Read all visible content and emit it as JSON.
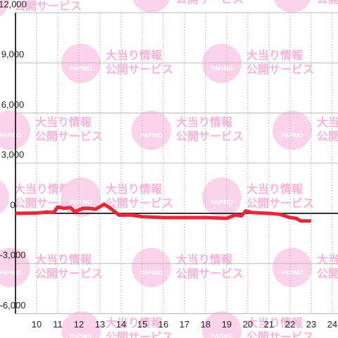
{
  "chart_data": {
    "type": "line",
    "x": [
      9.0,
      10.0,
      10.5,
      10.8,
      11.0,
      11.3,
      11.6,
      11.8,
      12.2,
      12.5,
      12.8,
      13.2,
      13.5,
      13.9,
      14.5,
      15.0,
      16.0,
      17.0,
      18.0,
      19.0,
      19.4,
      19.7,
      19.9,
      20.2,
      21.0,
      21.5,
      22.0,
      22.3,
      22.5,
      23.0
    ],
    "series": [
      {
        "color": "#e8283a",
        "values": [
          0,
          20,
          80,
          50,
          380,
          300,
          350,
          100,
          300,
          300,
          250,
          550,
          300,
          -100,
          -100,
          -200,
          -250,
          -250,
          -250,
          -300,
          -100,
          -150,
          150,
          50,
          0,
          -50,
          -250,
          -300,
          -450,
          -450
        ]
      }
    ],
    "xlim": [
      9,
      24.27
    ],
    "xticks": [
      10,
      11,
      12,
      13,
      14,
      15,
      16,
      17,
      18,
      19,
      20,
      21,
      22,
      23,
      24
    ],
    "ylim": [
      -6000,
      12000
    ],
    "yticks": [
      {
        "value": -6000,
        "label": "-6,000"
      },
      {
        "value": -3000,
        "label": "-3,000"
      },
      0,
      {
        "value": 3000,
        "label": "3,000"
      },
      {
        "value": 6000,
        "label": "6,000"
      },
      {
        "value": 9000,
        "label": "9,000"
      },
      {
        "value": 12000,
        "label": "12,000"
      }
    ],
    "grid": true,
    "watermark": {
      "logo": "PAPIMO",
      "line1": "大当り情報",
      "line2": "公開サービス"
    }
  }
}
